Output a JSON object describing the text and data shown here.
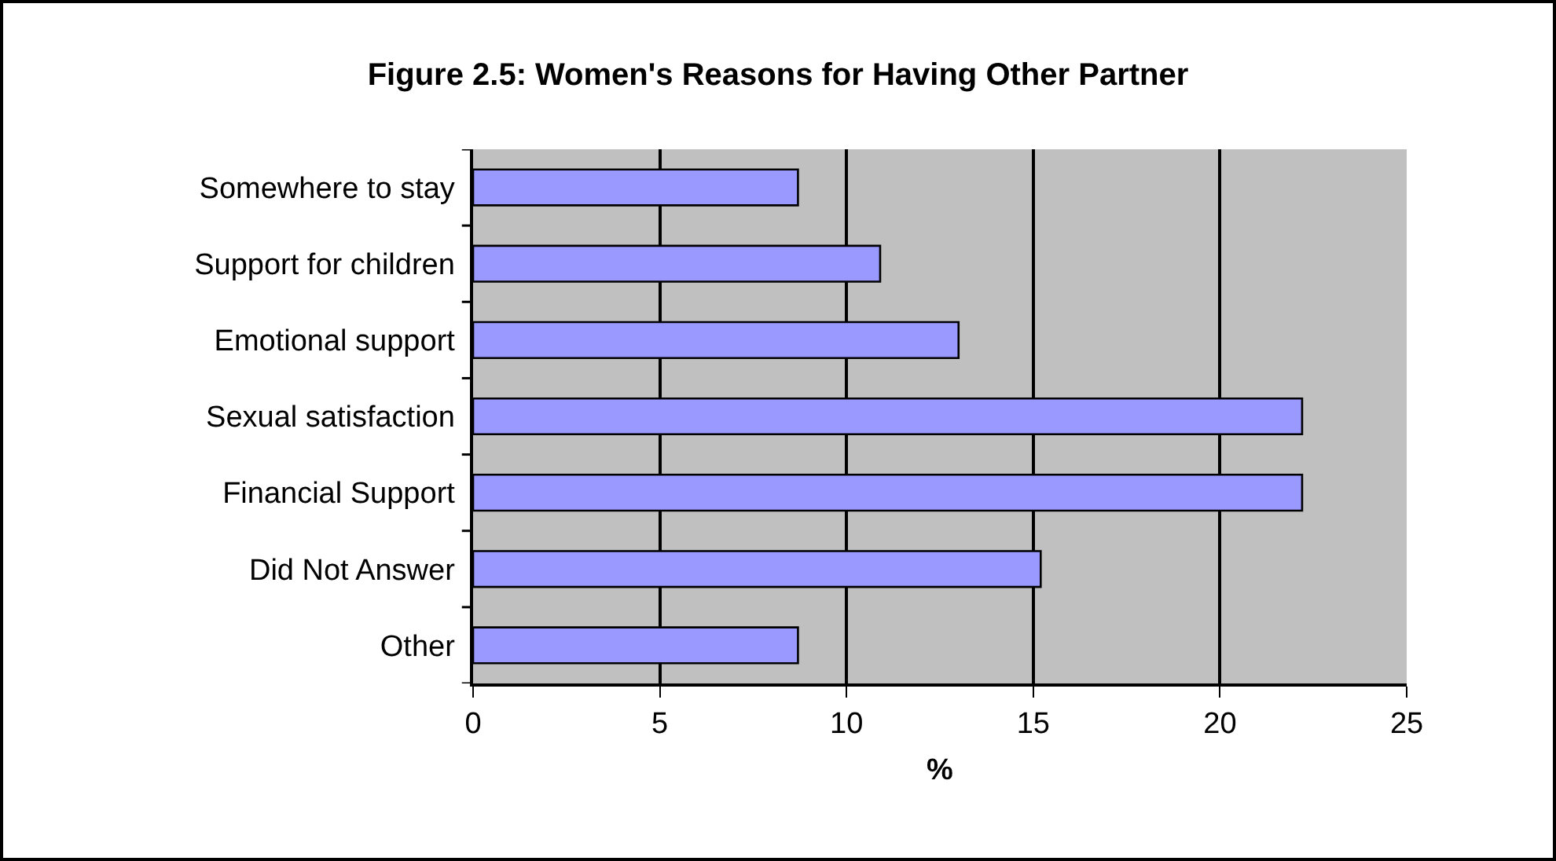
{
  "chart_data": {
    "type": "bar",
    "orientation": "horizontal",
    "title": "Figure 2.5: Women's Reasons for Having Other Partner",
    "xlabel": "%",
    "categories": [
      "Somewhere to stay",
      "Support for children",
      "Emotional support",
      "Sexual satisfaction",
      "Financial Support",
      "Did Not Answer",
      "Other"
    ],
    "values": [
      8.7,
      10.9,
      13.0,
      22.2,
      22.2,
      15.2,
      8.7
    ],
    "color": "#9999ff",
    "xlim": [
      0,
      25
    ],
    "xticks": [
      0,
      5,
      10,
      15,
      20,
      25
    ],
    "grid": "x"
  }
}
